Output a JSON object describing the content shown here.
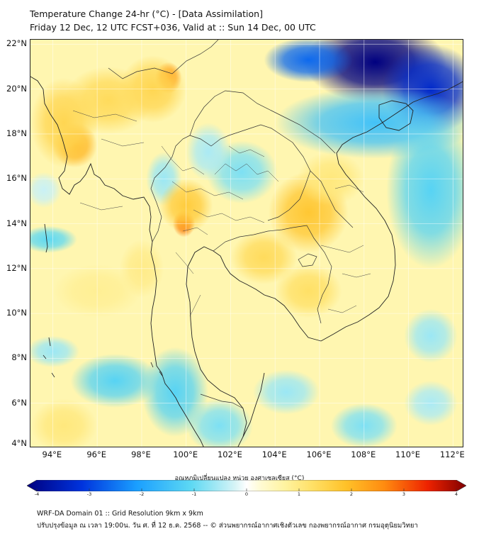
{
  "title": {
    "line1": "Temperature Change 24-hr (°C) - [Data Assimilation]",
    "line2": "Friday 12 Dec, 12 UTC FCST+036, Valid at :: Sun 14 Dec, 00 UTC"
  },
  "map": {
    "lon_range": [
      93.0,
      112.5
    ],
    "lat_range": [
      4.0,
      22.2
    ],
    "lon_ticks": [
      94,
      96,
      98,
      100,
      102,
      104,
      106,
      108,
      110,
      112
    ],
    "lat_ticks": [
      4,
      6,
      8,
      10,
      12,
      14,
      16,
      18,
      20,
      22
    ],
    "lon_labels": [
      "94°E",
      "96°E",
      "98°E",
      "100°E",
      "102°E",
      "104°E",
      "106°E",
      "108°E",
      "110°E",
      "112°E"
    ],
    "lat_labels": [
      "4°N",
      "6°N",
      "8°N",
      "10°N",
      "12°N",
      "14°N",
      "16°N",
      "18°N",
      "20°N",
      "22°N"
    ],
    "background_color": "#fff6b0",
    "field_blobs": [
      {
        "lon": 108.5,
        "lat": 21.2,
        "value": -4.0,
        "rlon": 3.2,
        "rlat": 1.8
      },
      {
        "lon": 111.0,
        "lat": 20.0,
        "value": -3.2,
        "rlon": 2.2,
        "rlat": 2.0
      },
      {
        "lon": 105.5,
        "lat": 21.3,
        "value": -2.5,
        "rlon": 2.0,
        "rlat": 1.0
      },
      {
        "lon": 108.5,
        "lat": 18.5,
        "value": -1.4,
        "rlon": 4.5,
        "rlat": 1.6
      },
      {
        "lon": 111.0,
        "lat": 15.5,
        "value": -1.1,
        "rlon": 2.0,
        "rlat": 3.5
      },
      {
        "lon": 102.5,
        "lat": 16.3,
        "value": -0.8,
        "rlon": 1.6,
        "rlat": 1.4
      },
      {
        "lon": 101.0,
        "lat": 17.2,
        "value": -0.5,
        "rlon": 1.0,
        "rlat": 1.3
      },
      {
        "lon": 99.0,
        "lat": 16.0,
        "value": -0.6,
        "rlon": 0.8,
        "rlat": 1.2
      },
      {
        "lon": 93.8,
        "lat": 13.3,
        "value": -1.0,
        "rlon": 1.3,
        "rlat": 0.6
      },
      {
        "lon": 94.0,
        "lat": 8.3,
        "value": -0.6,
        "rlon": 1.2,
        "rlat": 0.7
      },
      {
        "lon": 96.8,
        "lat": 7.0,
        "value": -1.1,
        "rlon": 2.0,
        "rlat": 1.2
      },
      {
        "lon": 99.5,
        "lat": 6.5,
        "value": -1.1,
        "rlon": 1.5,
        "rlat": 2.0
      },
      {
        "lon": 101.5,
        "lat": 5.0,
        "value": -0.8,
        "rlon": 1.5,
        "rlat": 1.2
      },
      {
        "lon": 104.5,
        "lat": 6.5,
        "value": -0.6,
        "rlon": 1.5,
        "rlat": 1.0
      },
      {
        "lon": 108.0,
        "lat": 5.0,
        "value": -0.8,
        "rlon": 1.5,
        "rlat": 1.0
      },
      {
        "lon": 111.0,
        "lat": 9.0,
        "value": -0.6,
        "rlon": 1.2,
        "rlat": 1.2
      },
      {
        "lon": 111.0,
        "lat": 6.0,
        "value": -0.5,
        "rlon": 1.2,
        "rlat": 1.0
      },
      {
        "lon": 93.6,
        "lat": 15.5,
        "value": -0.3,
        "rlon": 0.8,
        "rlat": 0.8
      },
      {
        "lon": 99.2,
        "lat": 20.5,
        "value": 2.4,
        "rlon": 0.6,
        "rlat": 0.7
      },
      {
        "lon": 98.5,
        "lat": 20.0,
        "value": 1.4,
        "rlon": 1.5,
        "rlat": 1.5
      },
      {
        "lon": 95.0,
        "lat": 17.5,
        "value": 2.0,
        "rlon": 1.0,
        "rlat": 1.0
      },
      {
        "lon": 94.5,
        "lat": 18.5,
        "value": 1.4,
        "rlon": 1.5,
        "rlat": 2.0
      },
      {
        "lon": 96.5,
        "lat": 19.5,
        "value": 1.3,
        "rlon": 2.0,
        "rlat": 1.5
      },
      {
        "lon": 99.9,
        "lat": 14.0,
        "value": 2.6,
        "rlon": 0.5,
        "rlat": 0.6
      },
      {
        "lon": 100.0,
        "lat": 14.8,
        "value": 1.6,
        "rlon": 1.2,
        "rlat": 1.2
      },
      {
        "lon": 105.5,
        "lat": 14.5,
        "value": 1.7,
        "rlon": 1.8,
        "rlat": 1.8
      },
      {
        "lon": 103.5,
        "lat": 12.5,
        "value": 1.3,
        "rlon": 1.5,
        "rlat": 1.2
      },
      {
        "lon": 105.5,
        "lat": 11.0,
        "value": 1.2,
        "rlon": 1.5,
        "rlat": 1.2
      },
      {
        "lon": 106.5,
        "lat": 16.0,
        "value": 1.0,
        "rlon": 1.5,
        "rlat": 1.2
      },
      {
        "lon": 98.0,
        "lat": 12.0,
        "value": 0.9,
        "rlon": 1.0,
        "rlat": 1.3
      },
      {
        "lon": 94.5,
        "lat": 5.0,
        "value": 1.0,
        "rlon": 1.5,
        "rlat": 1.2
      },
      {
        "lon": 96.0,
        "lat": 11.0,
        "value": 0.8,
        "rlon": 2.0,
        "rlat": 1.2
      }
    ],
    "coast_color": "#222222",
    "border_color": "#333333"
  },
  "colorbar": {
    "title": "อุณหภูมิเปลี่ยนแปลง หน่วย องศาเซลเซียส (°C)",
    "min": -4,
    "max": 4,
    "ticks": [
      "-4",
      "-3",
      "-2",
      "-1",
      "0",
      "1",
      "2",
      "3",
      "4"
    ],
    "stops": [
      {
        "value": -4.0,
        "color": "#000080"
      },
      {
        "value": -3.0,
        "color": "#0033dd"
      },
      {
        "value": -2.0,
        "color": "#1a9fff"
      },
      {
        "value": -1.0,
        "color": "#5ed9f3"
      },
      {
        "value": -0.2,
        "color": "#d8f4f6"
      },
      {
        "value": 0.0,
        "color": "#ffffff"
      },
      {
        "value": 0.25,
        "color": "#fffbd4"
      },
      {
        "value": 0.7,
        "color": "#fff3a0"
      },
      {
        "value": 1.2,
        "color": "#ffe066"
      },
      {
        "value": 1.8,
        "color": "#ffc229"
      },
      {
        "value": 2.5,
        "color": "#ff8c10"
      },
      {
        "value": 3.3,
        "color": "#ee2200"
      },
      {
        "value": 4.0,
        "color": "#800000"
      }
    ]
  },
  "footer": {
    "line1": "WRF-DA Domain 01 :: Grid Resolution 9km x 9km",
    "line2": "ปรับปรุงข้อมูล ณ เวลา 19:00น. วัน ศ. ที่ 12 ธ.ค. 2568 -- © ส่วนพยากรณ์อากาศเชิงตัวเลข กองพยากรณ์อากาศ กรมอุตุนิยมวิทยา"
  }
}
